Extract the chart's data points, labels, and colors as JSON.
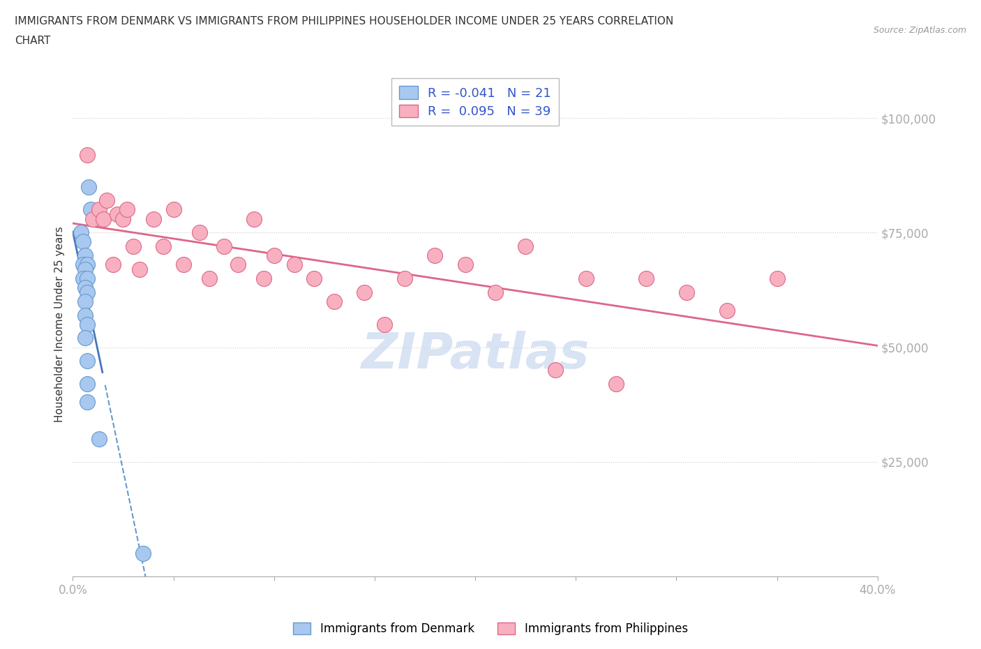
{
  "title_line1": "IMMIGRANTS FROM DENMARK VS IMMIGRANTS FROM PHILIPPINES HOUSEHOLDER INCOME UNDER 25 YEARS CORRELATION",
  "title_line2": "CHART",
  "source_text": "Source: ZipAtlas.com",
  "ylabel_label": "Householder Income Under 25 years",
  "xlim": [
    0.0,
    0.4
  ],
  "ylim": [
    0,
    110000
  ],
  "yticks": [
    0,
    25000,
    50000,
    75000,
    100000
  ],
  "ytick_labels": [
    "",
    "$25,000",
    "$50,000",
    "$75,000",
    "$100,000"
  ],
  "xticks": [
    0.0,
    0.05,
    0.1,
    0.15,
    0.2,
    0.25,
    0.3,
    0.35,
    0.4
  ],
  "xtick_labels": [
    "0.0%",
    "",
    "",
    "",
    "",
    "",
    "",
    "",
    "40.0%"
  ],
  "denmark_color": "#a8c8f0",
  "denmark_edge_color": "#6699cc",
  "denmark_line_color": "#4477bb",
  "philippines_color": "#f8b0c0",
  "philippines_edge_color": "#dd6688",
  "philippines_line_color": "#dd6688",
  "denmark_R": -0.041,
  "denmark_N": 21,
  "philippines_R": 0.095,
  "philippines_N": 39,
  "legend_color": "#3355cc",
  "watermark_text": "ZIPatlas",
  "watermark_color": "#c8d8f0",
  "denmark_x": [
    0.008,
    0.009,
    0.004,
    0.005,
    0.006,
    0.005,
    0.007,
    0.006,
    0.005,
    0.007,
    0.006,
    0.007,
    0.006,
    0.006,
    0.007,
    0.006,
    0.007,
    0.007,
    0.007,
    0.013,
    0.035
  ],
  "denmark_y": [
    85000,
    80000,
    75000,
    73000,
    70000,
    68000,
    68000,
    67000,
    65000,
    65000,
    63000,
    62000,
    60000,
    57000,
    55000,
    52000,
    47000,
    42000,
    38000,
    30000,
    5000
  ],
  "philippines_x": [
    0.007,
    0.01,
    0.013,
    0.015,
    0.017,
    0.02,
    0.022,
    0.025,
    0.027,
    0.03,
    0.033,
    0.04,
    0.045,
    0.05,
    0.055,
    0.063,
    0.068,
    0.075,
    0.082,
    0.09,
    0.095,
    0.1,
    0.11,
    0.12,
    0.13,
    0.145,
    0.155,
    0.165,
    0.18,
    0.195,
    0.21,
    0.225,
    0.24,
    0.255,
    0.27,
    0.285,
    0.305,
    0.325,
    0.35
  ],
  "philippines_y": [
    92000,
    78000,
    80000,
    78000,
    82000,
    68000,
    79000,
    78000,
    80000,
    72000,
    67000,
    78000,
    72000,
    80000,
    68000,
    75000,
    65000,
    72000,
    68000,
    78000,
    65000,
    70000,
    68000,
    65000,
    60000,
    62000,
    55000,
    65000,
    70000,
    68000,
    62000,
    72000,
    45000,
    65000,
    42000,
    65000,
    62000,
    58000,
    65000
  ]
}
